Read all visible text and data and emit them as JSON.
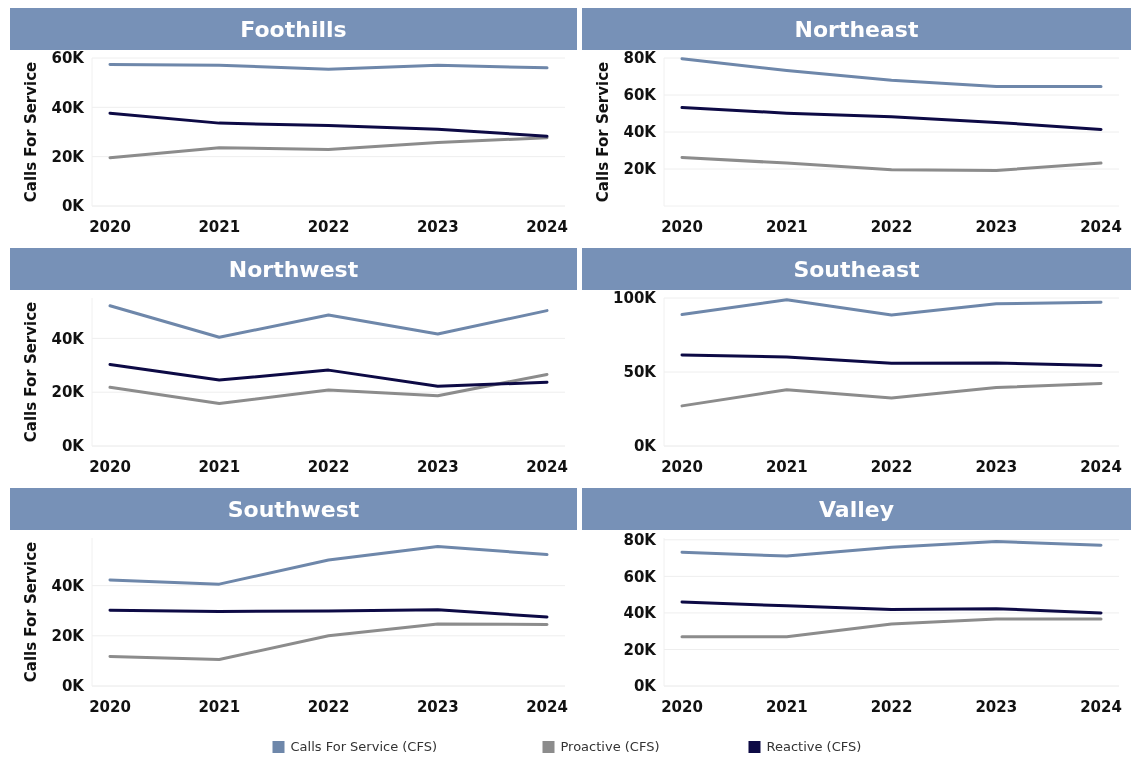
{
  "chart_data": [
    {
      "type": "line",
      "title": "Foothills",
      "ylabel": "Calls For Service",
      "categories": [
        "2020",
        "2021",
        "2022",
        "2023",
        "2024"
      ],
      "ylim": [
        0,
        60000
      ],
      "yticks": [
        {
          "value": 0,
          "label": "0K"
        },
        {
          "value": 20000,
          "label": "20K"
        },
        {
          "value": 40000,
          "label": "40K"
        },
        {
          "value": 60000,
          "label": "60K"
        }
      ],
      "grid": "y",
      "series": [
        {
          "color": "#6e87aa",
          "values": [
            57400,
            57100,
            55400,
            57100,
            56000
          ]
        },
        {
          "color": "#8c8c8c",
          "values": [
            19600,
            23600,
            22900,
            25700,
            27700
          ]
        },
        {
          "color": "#0d0a45",
          "values": [
            37600,
            33600,
            32600,
            31100,
            28300
          ]
        }
      ]
    },
    {
      "type": "line",
      "title": "Northeast",
      "ylabel": "Calls For Service",
      "categories": [
        "2020",
        "2021",
        "2022",
        "2023",
        "2024"
      ],
      "ylim": [
        0,
        80000
      ],
      "yticks": [
        {
          "value": 20000,
          "label": "20K"
        },
        {
          "value": 40000,
          "label": "40K"
        },
        {
          "value": 60000,
          "label": "60K"
        },
        {
          "value": 80000,
          "label": "80K"
        }
      ],
      "grid": "y",
      "series": [
        {
          "color": "#6e87aa",
          "values": [
            79600,
            73200,
            68000,
            64600,
            64600
          ]
        },
        {
          "color": "#8c8c8c",
          "values": [
            26200,
            23200,
            19600,
            19200,
            23200
          ]
        },
        {
          "color": "#0d0a45",
          "values": [
            53200,
            50200,
            48200,
            45200,
            41400
          ]
        }
      ]
    },
    {
      "type": "line",
      "title": "Northwest",
      "ylabel": "Calls For Service",
      "categories": [
        "2020",
        "2021",
        "2022",
        "2023",
        "2024"
      ],
      "ylim": [
        0,
        55000
      ],
      "yticks": [
        {
          "value": 0,
          "label": "0K"
        },
        {
          "value": 20000,
          "label": "20K"
        },
        {
          "value": 40000,
          "label": "40K"
        }
      ],
      "grid": "y",
      "series": [
        {
          "color": "#6e87aa",
          "values": [
            52100,
            40400,
            48700,
            41600,
            50300
          ]
        },
        {
          "color": "#8c8c8c",
          "values": [
            21800,
            15800,
            20800,
            18700,
            26600
          ]
        },
        {
          "color": "#0d0a45",
          "values": [
            30300,
            24500,
            28200,
            22200,
            23700
          ]
        }
      ]
    },
    {
      "type": "line",
      "title": "Southeast",
      "categories": [
        "2020",
        "2021",
        "2022",
        "2023",
        "2024"
      ],
      "ylim": [
        0,
        100000
      ],
      "yticks": [
        {
          "value": 0,
          "label": "0K"
        },
        {
          "value": 50000,
          "label": "50K"
        },
        {
          "value": 100000,
          "label": "100K"
        }
      ],
      "grid": "y",
      "series": [
        {
          "color": "#6e87aa",
          "values": [
            88800,
            98800,
            88500,
            96100,
            97100
          ]
        },
        {
          "color": "#8c8c8c",
          "values": [
            27100,
            38000,
            32400,
            39500,
            42200
          ]
        },
        {
          "color": "#0d0a45",
          "values": [
            61500,
            60200,
            55900,
            56100,
            54400
          ]
        }
      ]
    },
    {
      "type": "line",
      "title": "Southwest",
      "ylabel": "Calls For Service",
      "categories": [
        "2020",
        "2021",
        "2022",
        "2023",
        "2024"
      ],
      "ylim": [
        0,
        59000
      ],
      "yticks": [
        {
          "value": 0,
          "label": "0K"
        },
        {
          "value": 20000,
          "label": "20K"
        },
        {
          "value": 40000,
          "label": "40K"
        }
      ],
      "grid": "y",
      "series": [
        {
          "color": "#6e87aa",
          "values": [
            42300,
            40600,
            50200,
            55600,
            52400
          ]
        },
        {
          "color": "#8c8c8c",
          "values": [
            11800,
            10600,
            20000,
            24700,
            24500
          ]
        },
        {
          "color": "#0d0a45",
          "values": [
            30200,
            29700,
            29900,
            30400,
            27500
          ]
        }
      ]
    },
    {
      "type": "line",
      "title": "Valley",
      "categories": [
        "2020",
        "2021",
        "2022",
        "2023",
        "2024"
      ],
      "ylim": [
        0,
        81000
      ],
      "yticks": [
        {
          "value": 0,
          "label": "0K"
        },
        {
          "value": 20000,
          "label": "20K"
        },
        {
          "value": 40000,
          "label": "40K"
        },
        {
          "value": 60000,
          "label": "60K"
        },
        {
          "value": 80000,
          "label": "80K"
        }
      ],
      "grid": "y",
      "legend": "bottom",
      "series": [
        {
          "name": "Calls For Service (CFS)",
          "color": "#6e87aa",
          "values": [
            73200,
            71100,
            76000,
            79100,
            77000
          ]
        },
        {
          "name": "Proactive (CFS)",
          "color": "#8c8c8c",
          "values": [
            27000,
            27000,
            33900,
            36700,
            36700
          ]
        },
        {
          "name": "Reactive (CFS)",
          "color": "#0d0a45",
          "values": [
            46000,
            43900,
            41900,
            42300,
            40000
          ]
        }
      ]
    }
  ]
}
